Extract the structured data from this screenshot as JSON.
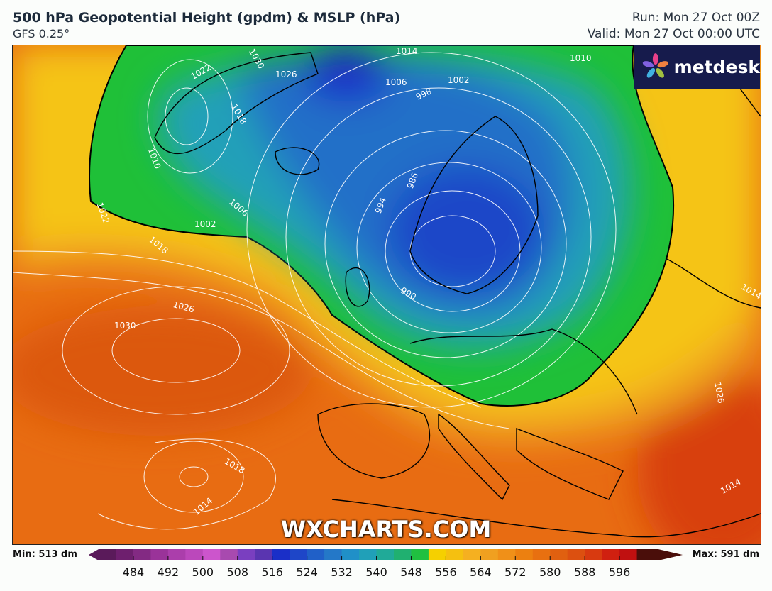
{
  "header": {
    "title": "500 hPa Geopotential Height (gpdm) & MSLP (hPa)",
    "model": "GFS 0.25°",
    "run": "Run: Mon 27 Oct 00Z",
    "valid": "Valid: Mon 27 Oct 00:00 UTC"
  },
  "logo": {
    "text": "metdesk"
  },
  "watermark": "WXCHARTS.COM",
  "colorbar": {
    "min_label": "Min: 513 dm",
    "max_label": "Max: 591 dm",
    "ticks": [
      "484",
      "492",
      "500",
      "508",
      "516",
      "524",
      "532",
      "540",
      "548",
      "556",
      "564",
      "572",
      "580",
      "588",
      "596"
    ],
    "colors": [
      "#5a1a5a",
      "#6e1f6e",
      "#832a83",
      "#9a3399",
      "#ab3eab",
      "#bb48bb",
      "#cc55cc",
      "#a84aaf",
      "#7a3fc0",
      "#5a35b0",
      "#1a2fc8",
      "#1e46c8",
      "#2060c8",
      "#2478c8",
      "#2090c8",
      "#20a0b8",
      "#20aa98",
      "#20b070",
      "#20c040",
      "#f5d000",
      "#f5c010",
      "#f5b020",
      "#f0a020",
      "#f09018",
      "#ec8010",
      "#e87010",
      "#e06010",
      "#dc5010",
      "#d83a10",
      "#d02010",
      "#c01010"
    ],
    "over_color": "#4a0e0a",
    "under_color": "#5a1a5a"
  },
  "isobar_labels": [
    "1014",
    "1010",
    "1030",
    "1022",
    "1026",
    "1018",
    "1006",
    "1002",
    "998",
    "986",
    "994",
    "990",
    "1026",
    "1030",
    "1018",
    "1014",
    "1010",
    "1014",
    "1014",
    "1002",
    "1022",
    "1006",
    "1018",
    "1026"
  ]
}
